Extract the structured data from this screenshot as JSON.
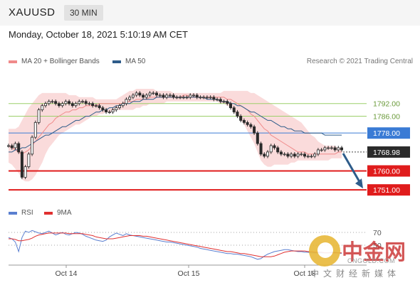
{
  "header": {
    "symbol": "XAUUSD",
    "interval": "30 MIN"
  },
  "datetime": "Monday, October 18, 2021 5:10:19 AM CET",
  "legend": {
    "ma20": "MA 20 + Bollinger Bands",
    "ma50": "MA 50",
    "credit": "Research © 2021 Trading Central"
  },
  "rsi_legend": {
    "rsi": "RSI",
    "ma9": "9MA"
  },
  "watermark": {
    "brand": "中金网",
    "url": "CNGOLD.COM",
    "sub": "中文财经新媒体"
  },
  "colors": {
    "bollinger_fill": "#f9d7d7",
    "ma20": "#f08a8a",
    "ma50": "#2e5c8a",
    "candle": "#2a2a2a",
    "resistance_green": "#9ccf6a",
    "pivot_blue": "#3a7bd5",
    "support_red": "#e01c1c",
    "current_label": "#2b2b2b",
    "rsi_line": "#5a7fd0",
    "rsi_ma": "#e03030",
    "arrow": "#2e5c8a"
  },
  "chart_data": [
    {
      "type": "line",
      "name": "price",
      "x_ticks": [
        "Oct 14",
        "Oct 15",
        "Oct 18"
      ],
      "ylim": [
        1746,
        1800
      ],
      "levels": [
        {
          "value": 1792.0,
          "label": "1792.00",
          "kind": "resistance"
        },
        {
          "value": 1786.0,
          "label": "1786.00",
          "kind": "resistance"
        },
        {
          "value": 1778.0,
          "label": "1778.00",
          "kind": "pivot"
        },
        {
          "value": 1760.0,
          "label": "1760.00",
          "kind": "support"
        },
        {
          "value": 1751.0,
          "label": "1751.00",
          "kind": "support"
        }
      ],
      "current": {
        "value": 1768.98,
        "label": "1768.98"
      },
      "close": [
        1772,
        1771,
        1773,
        1769,
        1757,
        1762,
        1768,
        1776,
        1783,
        1789,
        1791,
        1792,
        1793,
        1793,
        1792,
        1791,
        1792,
        1793,
        1792,
        1791,
        1792,
        1793,
        1793,
        1792,
        1792,
        1791,
        1791,
        1790,
        1789,
        1788,
        1788,
        1789,
        1790,
        1791,
        1792,
        1794,
        1795,
        1796,
        1797,
        1796,
        1795,
        1796,
        1797,
        1797,
        1796,
        1796,
        1795,
        1796,
        1796,
        1795,
        1795,
        1795,
        1795,
        1795,
        1796,
        1796,
        1795,
        1795,
        1795,
        1795,
        1795,
        1794,
        1794,
        1793,
        1793,
        1792,
        1790,
        1788,
        1786,
        1784,
        1783,
        1782,
        1781,
        1778,
        1773,
        1768,
        1767,
        1769,
        1772,
        1771,
        1769,
        1768,
        1768,
        1767,
        1768,
        1767,
        1768,
        1768,
        1767,
        1767,
        1767,
        1768,
        1770,
        1770,
        1771,
        1771,
        1771,
        1770,
        1771,
        1770
      ],
      "ma20": [
        1772,
        1771,
        1770,
        1769,
        1768,
        1769,
        1770,
        1772,
        1774,
        1776,
        1778,
        1780,
        1782,
        1783,
        1785,
        1786,
        1787,
        1788,
        1788,
        1789,
        1789,
        1790,
        1790,
        1791,
        1791,
        1791,
        1791,
        1792,
        1792,
        1792,
        1792,
        1792,
        1792,
        1792,
        1792,
        1793,
        1793,
        1793,
        1794,
        1794,
        1794,
        1794,
        1795,
        1795,
        1795,
        1795,
        1795,
        1795,
        1795,
        1795,
        1795,
        1795,
        1796,
        1796,
        1795,
        1795,
        1795,
        1795,
        1795,
        1795,
        1795,
        1795,
        1795,
        1795,
        1795,
        1794,
        1794,
        1793,
        1792,
        1791,
        1790,
        1789,
        1787,
        1786,
        1784,
        1782,
        1780,
        1779,
        1777,
        1776,
        1775,
        1774,
        1773,
        1772,
        1771,
        1770,
        1769,
        1769,
        1769,
        1768,
        1768,
        1768,
        1768,
        1768,
        1768,
        1768,
        1768,
        1768,
        1769,
        1769
      ],
      "ma50": [
        1769,
        1769,
        1770,
        1770,
        1771,
        1771,
        1772,
        1773,
        1774,
        1775,
        1776,
        1777,
        1777,
        1778,
        1779,
        1780,
        1781,
        1781,
        1782,
        1783,
        1784,
        1784,
        1785,
        1786,
        1786,
        1787,
        1788,
        1788,
        1789,
        1789,
        1790,
        1790,
        1791,
        1791,
        1792,
        1792,
        1792,
        1793,
        1793,
        1793,
        1794,
        1794,
        1794,
        1794,
        1795,
        1795,
        1795,
        1795,
        1795,
        1795,
        1795,
        1795,
        1795,
        1795,
        1795,
        1795,
        1795,
        1795,
        1795,
        1794,
        1794,
        1794,
        1794,
        1793,
        1793,
        1793,
        1792,
        1792,
        1791,
        1791,
        1790,
        1789,
        1788,
        1788,
        1787,
        1786,
        1785,
        1784,
        1784,
        1783,
        1782,
        1781,
        1781,
        1780,
        1780,
        1779,
        1779,
        1779,
        1778,
        1778,
        1778,
        1778,
        1778,
        1778,
        1777,
        1777,
        1777,
        1777,
        1777,
        1777
      ],
      "bb_upper": [
        1780,
        1780,
        1780,
        1781,
        1784,
        1787,
        1790,
        1792,
        1794,
        1796,
        1797,
        1797,
        1797,
        1797,
        1797,
        1797,
        1797,
        1797,
        1796,
        1796,
        1796,
        1795,
        1795,
        1795,
        1795,
        1795,
        1794,
        1794,
        1794,
        1794,
        1794,
        1794,
        1794,
        1795,
        1796,
        1797,
        1798,
        1798,
        1799,
        1799,
        1799,
        1799,
        1799,
        1799,
        1798,
        1798,
        1798,
        1798,
        1798,
        1797,
        1797,
        1797,
        1797,
        1797,
        1797,
        1797,
        1797,
        1797,
        1797,
        1797,
        1797,
        1797,
        1797,
        1797,
        1798,
        1798,
        1798,
        1798,
        1798,
        1798,
        1798,
        1798,
        1797,
        1797,
        1796,
        1795,
        1794,
        1793,
        1792,
        1791,
        1790,
        1789,
        1788,
        1787,
        1786,
        1785,
        1784,
        1783,
        1781,
        1779,
        1777,
        1776,
        1774,
        1773,
        1772,
        1772,
        1772,
        1772,
        1771,
        1771
      ],
      "bb_lower": [
        1764,
        1763,
        1761,
        1759,
        1756,
        1755,
        1755,
        1756,
        1758,
        1761,
        1764,
        1768,
        1771,
        1773,
        1775,
        1777,
        1778,
        1779,
        1780,
        1781,
        1782,
        1782,
        1783,
        1784,
        1785,
        1786,
        1786,
        1787,
        1787,
        1788,
        1788,
        1788,
        1789,
        1789,
        1789,
        1789,
        1789,
        1789,
        1790,
        1790,
        1791,
        1791,
        1792,
        1792,
        1792,
        1792,
        1792,
        1793,
        1793,
        1793,
        1793,
        1793,
        1793,
        1793,
        1793,
        1793,
        1793,
        1793,
        1793,
        1793,
        1793,
        1793,
        1793,
        1792,
        1792,
        1791,
        1790,
        1788,
        1786,
        1784,
        1782,
        1779,
        1776,
        1773,
        1769,
        1765,
        1763,
        1762,
        1762,
        1763,
        1763,
        1763,
        1763,
        1763,
        1764,
        1764,
        1765,
        1765,
        1765,
        1765,
        1765,
        1765,
        1765,
        1765,
        1765,
        1765,
        1766,
        1766,
        1766,
        1766
      ],
      "forecast_arrow": {
        "from": 1768.98,
        "to": 1751.0
      }
    },
    {
      "type": "line",
      "name": "rsi",
      "ylim": [
        20,
        80
      ],
      "levels": [
        {
          "value": 70,
          "label": "70"
        },
        {
          "value": 50,
          "label": "50"
        }
      ],
      "rsi": [
        62,
        60,
        55,
        40,
        62,
        72,
        70,
        73,
        71,
        69,
        68,
        70,
        72,
        69,
        66,
        68,
        70,
        67,
        66,
        68,
        70,
        69,
        67,
        64,
        62,
        60,
        58,
        57,
        56,
        58,
        63,
        66,
        69,
        67,
        65,
        68,
        66,
        65,
        64,
        63,
        62,
        61,
        60,
        59,
        58,
        57,
        56,
        55,
        55,
        54,
        53,
        52,
        51,
        50,
        49,
        48,
        47,
        45,
        44,
        43,
        42,
        41,
        40,
        39,
        38,
        37,
        37,
        36,
        36,
        35,
        34,
        33,
        32,
        30,
        28,
        29,
        33,
        36,
        38,
        40,
        41,
        42,
        43,
        43,
        42,
        41,
        40,
        40,
        39,
        39,
        38,
        38,
        38,
        38,
        38,
        38,
        39,
        39,
        38,
        37
      ],
      "ma9": [
        60,
        60,
        59,
        57,
        57,
        58,
        59,
        61,
        64,
        66,
        67,
        68,
        69,
        69,
        69,
        69,
        69,
        69,
        68,
        68,
        68,
        68,
        68,
        67,
        66,
        65,
        63,
        62,
        61,
        60,
        60,
        60,
        61,
        62,
        63,
        64,
        65,
        65,
        65,
        65,
        64,
        64,
        63,
        62,
        61,
        60,
        59,
        58,
        57,
        56,
        55,
        54,
        53,
        52,
        51,
        50,
        49,
        48,
        47,
        46,
        45,
        44,
        43,
        42,
        41,
        40,
        40,
        39,
        38,
        37,
        37,
        36,
        35,
        34,
        33,
        32,
        32,
        32,
        32,
        33,
        35,
        37,
        39,
        40,
        41,
        41,
        41,
        41,
        41,
        40,
        40,
        39,
        39,
        39,
        38,
        38,
        38,
        38,
        38,
        38
      ]
    }
  ]
}
